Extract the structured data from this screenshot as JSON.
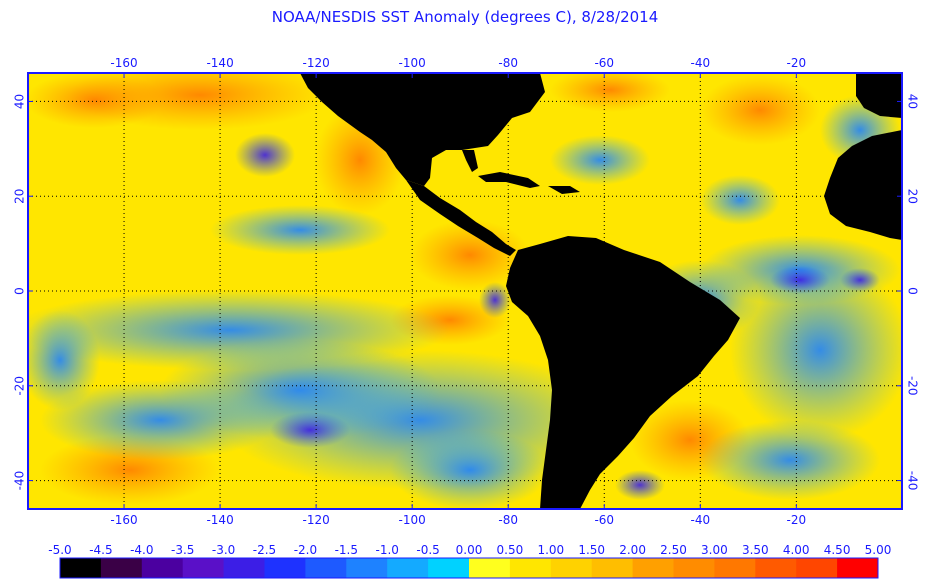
{
  "title": "NOAA/NESDIS SST Anomaly (degrees C), 8/28/2014",
  "map": {
    "lon_range": [
      -180,
      2
    ],
    "lat_range": [
      -46,
      46
    ],
    "lon_ticks": [
      "-160",
      "-140",
      "-120",
      "-100",
      "-80",
      "-60",
      "-40",
      "-20"
    ],
    "lon_tick_values": [
      -160,
      -140,
      -120,
      -100,
      -80,
      -60,
      -40,
      -20
    ],
    "lat_ticks": [
      "40",
      "20",
      "0",
      "-20",
      "-40"
    ],
    "lat_tick_values": [
      40,
      20,
      0,
      -20,
      -40
    ],
    "land_color": "#000000",
    "frame_color": "#1a1aff",
    "grid": "dotted"
  },
  "colorbar": {
    "labels": [
      "-5.0",
      "-4.5",
      "-4.0",
      "-3.5",
      "-3.0",
      "-2.5",
      "-2.0",
      "-1.5",
      "-1.0",
      "-0.5",
      "0.00",
      "0.50",
      "1.00",
      "1.50",
      "2.00",
      "2.50",
      "3.00",
      "3.50",
      "4.00",
      "4.50",
      "5.00"
    ],
    "colors": [
      "#000000",
      "#3a0046",
      "#4b00a0",
      "#5a10c8",
      "#3c1ee6",
      "#1e32ff",
      "#1e5aff",
      "#1e82ff",
      "#14aaff",
      "#00d2ff",
      "#ffff1e",
      "#ffe600",
      "#ffd200",
      "#ffbe00",
      "#ffa000",
      "#ff8c00",
      "#ff7800",
      "#ff5a00",
      "#ff4600",
      "#ff0000"
    ]
  }
}
